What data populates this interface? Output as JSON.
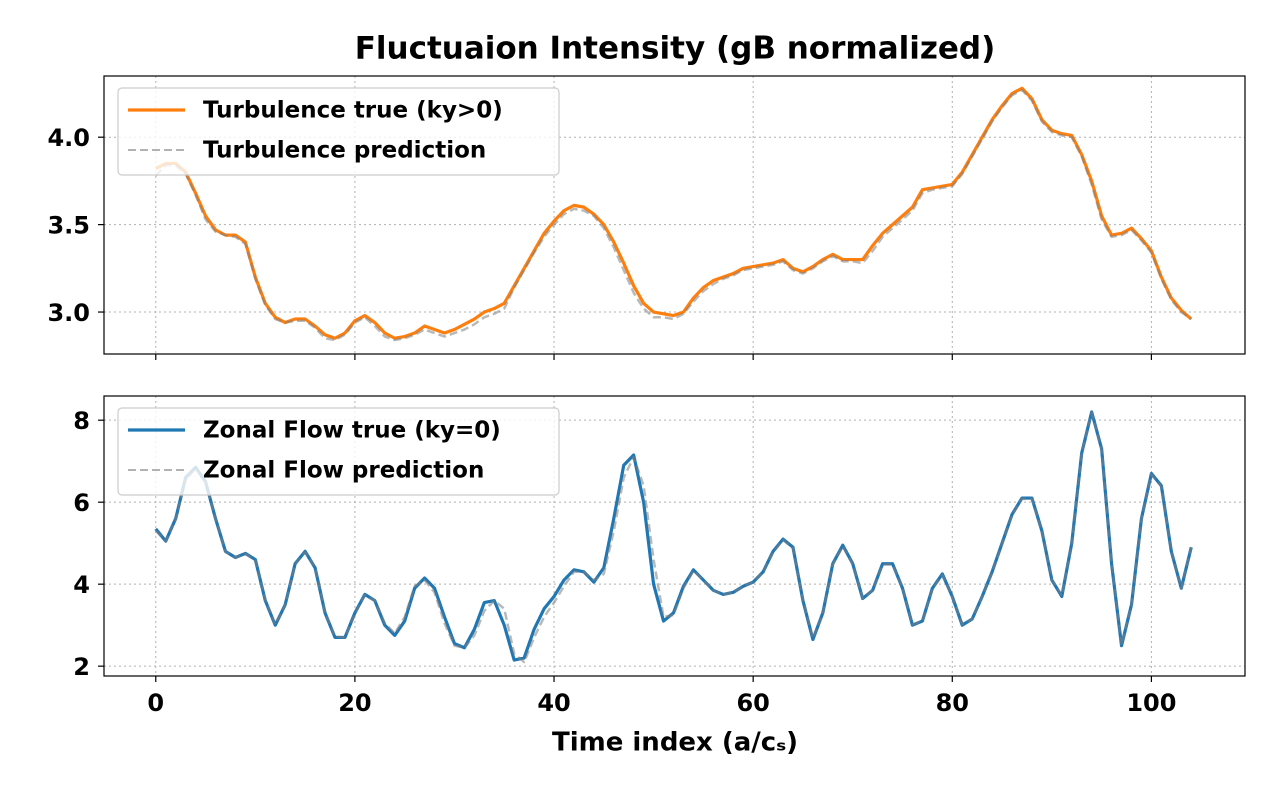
{
  "chart_data": [
    {
      "type": "line",
      "title": "Fluctuaion Intensity (gB normalized)",
      "x": [
        0,
        1,
        2,
        3,
        4,
        5,
        6,
        7,
        8,
        9,
        10,
        11,
        12,
        13,
        14,
        15,
        16,
        17,
        18,
        19,
        20,
        21,
        22,
        23,
        24,
        25,
        26,
        27,
        28,
        29,
        30,
        31,
        32,
        33,
        34,
        35,
        36,
        37,
        38,
        39,
        40,
        41,
        42,
        43,
        44,
        45,
        46,
        47,
        48,
        49,
        50,
        51,
        52,
        53,
        54,
        55,
        56,
        57,
        58,
        59,
        60,
        61,
        62,
        63,
        64,
        65,
        66,
        67,
        68,
        69,
        70,
        71,
        72,
        73,
        74,
        75,
        76,
        77,
        78,
        79,
        80,
        81,
        82,
        83,
        84,
        85,
        86,
        87,
        88,
        89,
        90,
        91,
        92,
        93,
        94,
        95,
        96,
        97,
        98,
        99,
        100,
        101,
        102,
        103,
        104
      ],
      "series": [
        {
          "name": "Turbulence true (ky>0)",
          "color": "#ff7f0e",
          "style": "solid",
          "values": [
            3.82,
            3.85,
            3.85,
            3.8,
            3.68,
            3.55,
            3.47,
            3.44,
            3.44,
            3.4,
            3.2,
            3.05,
            2.97,
            2.94,
            2.96,
            2.96,
            2.92,
            2.87,
            2.85,
            2.88,
            2.95,
            2.98,
            2.94,
            2.88,
            2.85,
            2.86,
            2.88,
            2.92,
            2.9,
            2.88,
            2.9,
            2.93,
            2.96,
            3.0,
            3.02,
            3.05,
            3.15,
            3.25,
            3.35,
            3.45,
            3.52,
            3.58,
            3.61,
            3.6,
            3.56,
            3.5,
            3.4,
            3.28,
            3.15,
            3.05,
            3.0,
            2.99,
            2.98,
            3.0,
            3.08,
            3.14,
            3.18,
            3.2,
            3.22,
            3.25,
            3.26,
            3.27,
            3.28,
            3.3,
            3.25,
            3.23,
            3.26,
            3.3,
            3.33,
            3.3,
            3.3,
            3.3,
            3.38,
            3.45,
            3.5,
            3.55,
            3.6,
            3.7,
            3.71,
            3.72,
            3.73,
            3.8,
            3.9,
            4.0,
            4.1,
            4.18,
            4.25,
            4.28,
            4.22,
            4.1,
            4.04,
            4.02,
            4.01,
            3.9,
            3.75,
            3.55,
            3.44,
            3.45,
            3.48,
            3.42,
            3.35,
            3.2,
            3.08,
            3.01,
            2.96
          ]
        },
        {
          "name": "Turbulence prediction",
          "color": "#808080",
          "style": "dashed",
          "values": [
            3.78,
            3.84,
            3.84,
            3.79,
            3.67,
            3.53,
            3.46,
            3.44,
            3.43,
            3.39,
            3.19,
            3.04,
            2.96,
            2.94,
            2.95,
            2.95,
            2.91,
            2.85,
            2.84,
            2.87,
            2.94,
            2.97,
            2.92,
            2.86,
            2.84,
            2.85,
            2.87,
            2.9,
            2.88,
            2.86,
            2.88,
            2.9,
            2.93,
            2.97,
            2.99,
            3.02,
            3.14,
            3.24,
            3.34,
            3.43,
            3.5,
            3.56,
            3.59,
            3.58,
            3.55,
            3.48,
            3.37,
            3.24,
            3.11,
            3.02,
            2.97,
            2.97,
            2.96,
            2.99,
            3.06,
            3.12,
            3.16,
            3.19,
            3.21,
            3.24,
            3.25,
            3.26,
            3.27,
            3.29,
            3.24,
            3.22,
            3.25,
            3.29,
            3.32,
            3.29,
            3.29,
            3.28,
            3.35,
            3.43,
            3.48,
            3.53,
            3.58,
            3.68,
            3.7,
            3.71,
            3.72,
            3.79,
            3.89,
            3.99,
            4.09,
            4.17,
            4.24,
            4.27,
            4.21,
            4.09,
            4.03,
            4.01,
            4.0,
            3.89,
            3.73,
            3.53,
            3.43,
            3.44,
            3.47,
            3.41,
            3.34,
            3.19,
            3.07,
            3.0,
            2.96
          ]
        }
      ],
      "xlim": [
        -5.2,
        109.4
      ],
      "xticks": [
        0,
        20,
        40,
        60,
        80,
        100
      ],
      "ylim": [
        2.76,
        4.35
      ],
      "yticks": [
        {
          "value": 3.0,
          "label": "3.0"
        },
        3.5,
        {
          "value": 4.0,
          "label": "4.0"
        }
      ],
      "grid": true,
      "legend": "upper left"
    },
    {
      "type": "line",
      "xlabel": "Time index (a/cₛ)",
      "x": [
        0,
        1,
        2,
        3,
        4,
        5,
        6,
        7,
        8,
        9,
        10,
        11,
        12,
        13,
        14,
        15,
        16,
        17,
        18,
        19,
        20,
        21,
        22,
        23,
        24,
        25,
        26,
        27,
        28,
        29,
        30,
        31,
        32,
        33,
        34,
        35,
        36,
        37,
        38,
        39,
        40,
        41,
        42,
        43,
        44,
        45,
        46,
        47,
        48,
        49,
        50,
        51,
        52,
        53,
        54,
        55,
        56,
        57,
        58,
        59,
        60,
        61,
        62,
        63,
        64,
        65,
        66,
        67,
        68,
        69,
        70,
        71,
        72,
        73,
        74,
        75,
        76,
        77,
        78,
        79,
        80,
        81,
        82,
        83,
        84,
        85,
        86,
        87,
        88,
        89,
        90,
        91,
        92,
        93,
        94,
        95,
        96,
        97,
        98,
        99,
        100,
        101,
        102,
        103,
        104
      ],
      "series": [
        {
          "name": "Zonal Flow true (ky=0)",
          "color": "#1f77b4",
          "style": "solid",
          "values": [
            5.35,
            5.05,
            5.6,
            6.6,
            6.85,
            6.5,
            5.6,
            4.8,
            4.65,
            4.75,
            4.6,
            3.6,
            3.0,
            3.5,
            4.5,
            4.8,
            4.4,
            3.3,
            2.7,
            2.7,
            3.3,
            3.75,
            3.6,
            3.0,
            2.75,
            3.1,
            3.9,
            4.15,
            3.9,
            3.2,
            2.55,
            2.45,
            2.9,
            3.55,
            3.6,
            3.0,
            2.15,
            2.2,
            2.9,
            3.4,
            3.7,
            4.1,
            4.35,
            4.3,
            4.05,
            4.4,
            5.6,
            6.9,
            7.15,
            6.0,
            4.0,
            3.1,
            3.3,
            3.95,
            4.35,
            4.1,
            3.85,
            3.75,
            3.8,
            3.95,
            4.05,
            4.3,
            4.8,
            5.1,
            4.9,
            3.6,
            2.65,
            3.3,
            4.5,
            4.95,
            4.5,
            3.65,
            3.85,
            4.5,
            4.5,
            3.9,
            3.0,
            3.1,
            3.9,
            4.25,
            3.7,
            3.0,
            3.15,
            3.7,
            4.3,
            5.0,
            5.7,
            6.1,
            6.1,
            5.3,
            4.1,
            3.7,
            5.0,
            7.2,
            8.2,
            7.3,
            4.5,
            2.5,
            3.5,
            5.6,
            6.7,
            6.4,
            4.8,
            3.9,
            4.9
          ]
        },
        {
          "name": "Zonal Flow prediction",
          "color": "#808080",
          "style": "dashed",
          "values": [
            5.3,
            5.05,
            5.58,
            6.55,
            6.82,
            6.48,
            5.6,
            4.8,
            4.65,
            4.74,
            4.58,
            3.62,
            3.02,
            3.48,
            4.48,
            4.78,
            4.42,
            3.32,
            2.72,
            2.7,
            3.28,
            3.73,
            3.6,
            3.05,
            2.8,
            3.2,
            3.95,
            4.1,
            3.8,
            3.05,
            2.5,
            2.45,
            2.75,
            3.35,
            3.6,
            3.4,
            2.3,
            2.1,
            2.7,
            3.2,
            3.55,
            3.95,
            4.3,
            4.3,
            4.1,
            4.25,
            5.3,
            6.6,
            7.1,
            6.4,
            4.6,
            3.2,
            3.25,
            3.9,
            4.33,
            4.1,
            3.85,
            3.75,
            3.8,
            3.95,
            4.05,
            4.3,
            4.78,
            5.08,
            4.88,
            3.62,
            2.68,
            3.28,
            4.48,
            4.92,
            4.48,
            3.66,
            3.85,
            4.48,
            4.48,
            3.9,
            3.02,
            3.1,
            3.88,
            4.22,
            3.7,
            3.02,
            3.15,
            3.7,
            4.28,
            4.98,
            5.68,
            6.08,
            6.08,
            5.3,
            4.12,
            3.72,
            4.98,
            7.18,
            8.18,
            7.28,
            4.52,
            2.52,
            3.5,
            5.58,
            6.68,
            6.38,
            4.8,
            3.9,
            4.9
          ]
        }
      ],
      "xlim": [
        -5.2,
        109.4
      ],
      "xticks": [
        0,
        20,
        40,
        60,
        80,
        100
      ],
      "ylim": [
        1.76,
        8.59
      ],
      "yticks": [
        2,
        4,
        6,
        8
      ],
      "grid": true,
      "legend": "upper left"
    }
  ]
}
